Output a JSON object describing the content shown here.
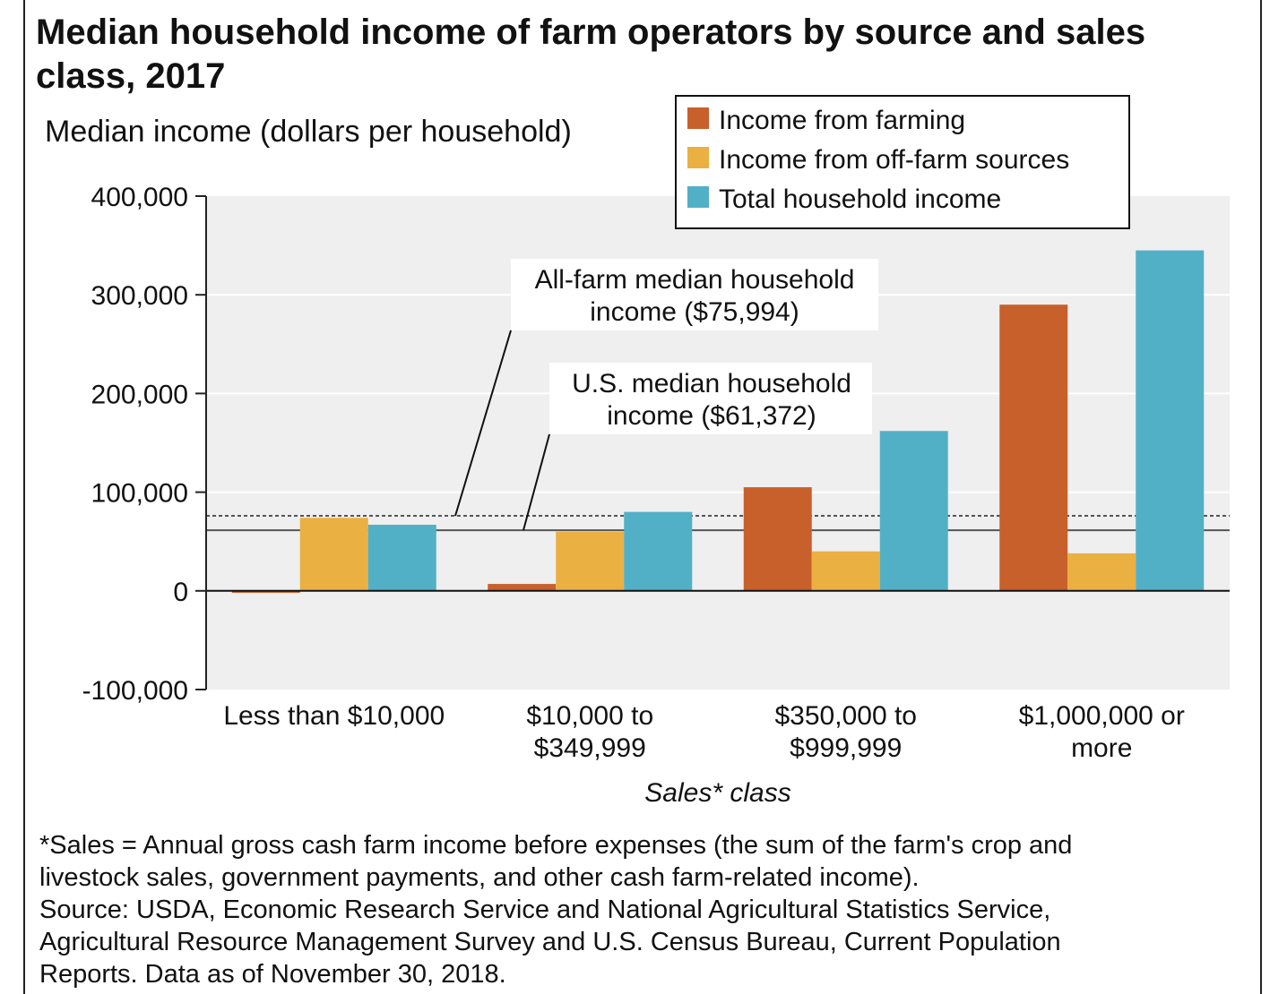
{
  "chart_data": {
    "type": "bar",
    "title": "Median household income of farm operators by source and sales class, 2017",
    "ylabel": "Median income (dollars per household)",
    "xlabel": "Sales* class",
    "ylim": [
      -100000,
      400000
    ],
    "yticks": [
      -100000,
      0,
      100000,
      200000,
      300000,
      400000
    ],
    "ytick_labels": [
      "-100,000",
      "0",
      "100,000",
      "200,000",
      "300,000",
      "400,000"
    ],
    "categories": [
      [
        "Less than $10,000"
      ],
      [
        "$10,000 to",
        "$349,999"
      ],
      [
        "$350,000 to",
        "$999,999"
      ],
      [
        "$1,000,000 or",
        "more"
      ]
    ],
    "series": [
      {
        "name": "Income from farming",
        "color": "#c8602b",
        "values": [
          -2000,
          7000,
          105000,
          290000
        ]
      },
      {
        "name": "Income from off-farm sources",
        "color": "#ebb042",
        "values": [
          74000,
          60000,
          40000,
          38000
        ]
      },
      {
        "name": "Total household income",
        "color": "#52b0c6",
        "values": [
          67000,
          80000,
          162000,
          345000
        ]
      }
    ],
    "legend_position": "top-right",
    "reference_lines": [
      {
        "label": [
          "All-farm median household",
          "income ($75,994)"
        ],
        "value": 75994,
        "style": "dotted"
      },
      {
        "label": [
          "U.S. median household",
          "income ($61,372)"
        ],
        "value": 61372,
        "style": "solid"
      }
    ],
    "grid": true
  },
  "footnote": {
    "lines": [
      "*Sales = Annual gross cash farm income before expenses (the sum of the farm's crop and",
      "livestock sales, government payments, and other cash farm-related income).",
      "Source: USDA, Economic Research Service and National Agricultural Statistics Service,",
      "Agricultural Resource Management Survey and U.S. Census Bureau, Current Population",
      "Reports. Data as of November 30, 2018."
    ]
  }
}
